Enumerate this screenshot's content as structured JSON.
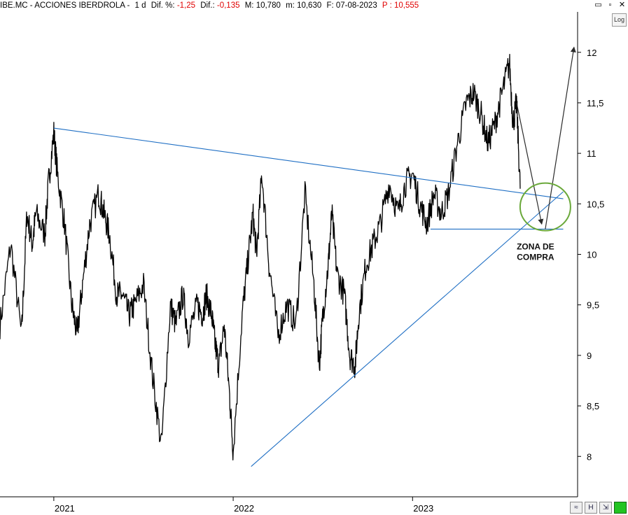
{
  "header": {
    "symbol": "IBE.MC - ACCIONES IBERDROLA -",
    "interval": "1 d",
    "dif_pct_label": "Dif. %:",
    "dif_pct": "-1,25",
    "dif_label": "Dif.:",
    "dif": "-0,135",
    "max_label": "M:",
    "max": "10,780",
    "min_label": "m:",
    "min": "10,630",
    "date_label": "F:",
    "date": "07-08-2023",
    "price_label": "P :",
    "price": "10,555"
  },
  "window_buttons": {
    "minimize": "▭",
    "restore": "▫",
    "close": "✕"
  },
  "log_button": "Log",
  "colors": {
    "price": "#000000",
    "trendline": "#1f6fc4",
    "circle": "#6aa83a",
    "negative": "#e00000",
    "arrow": "#2a2a2a",
    "axis_line": "#000000"
  },
  "toolbar": [
    "≈",
    "H",
    "⇲",
    ""
  ],
  "chart_data": {
    "type": "line",
    "title": "",
    "annotation": "ZONA DE\nCOMPRA",
    "x_ticks": [
      {
        "label": "2021",
        "t": 2021.0
      },
      {
        "label": "2022",
        "t": 2022.0
      },
      {
        "label": "2023",
        "t": 2023.0
      }
    ],
    "y_ticks": [
      "12",
      "11,5",
      "11",
      "10,5",
      "10",
      "9,5",
      "9",
      "8,5",
      "8"
    ],
    "ylim": [
      7.6,
      12.4
    ],
    "xlim": [
      2020.7,
      2023.92
    ],
    "series": [
      {
        "values_t": [
          2020.7,
          2020.76,
          2020.82,
          2020.85,
          2020.88,
          2020.9,
          2020.95,
          2020.97,
          2021.0,
          2021.02,
          2021.06,
          2021.1,
          2021.13,
          2021.16,
          2021.2,
          2021.25,
          2021.28,
          2021.31,
          2021.35,
          2021.38,
          2021.42,
          2021.45,
          2021.5,
          2021.55,
          2021.6,
          2021.65,
          2021.68,
          2021.72,
          2021.75,
          2021.8,
          2021.83,
          2021.85,
          2021.88,
          2021.9,
          2021.92,
          2021.95,
          2021.98,
          2022.0,
          2022.05,
          2022.08,
          2022.11,
          2022.13,
          2022.16,
          2022.2,
          2022.25,
          2022.3,
          2022.35,
          2022.4,
          2022.45,
          2022.48,
          2022.5,
          2022.53,
          2022.55,
          2022.58,
          2022.62,
          2022.65,
          2022.68,
          2022.7,
          2022.74,
          2022.78,
          2022.82,
          2022.87,
          2022.92,
          2022.96,
          2023.0,
          2023.04,
          2023.08,
          2023.12,
          2023.16,
          2023.2,
          2023.25,
          2023.3,
          2023.34,
          2023.38,
          2023.42,
          2023.46,
          2023.5,
          2023.54,
          2023.56,
          2023.58,
          2023.6
        ],
        "values": [
          9.3,
          10.1,
          9.2,
          10.4,
          10.1,
          10.4,
          10.2,
          10.7,
          11.2,
          10.8,
          10.3,
          9.5,
          9.2,
          9.7,
          10.3,
          10.6,
          10.4,
          10.2,
          9.6,
          9.6,
          9.4,
          9.5,
          9.7,
          8.8,
          8.1,
          9.5,
          9.3,
          9.6,
          9.2,
          9.5,
          9.4,
          9.6,
          9.4,
          9.1,
          8.9,
          9.3,
          8.6,
          8.05,
          9.4,
          9.9,
          10.4,
          10.0,
          10.8,
          9.9,
          9.2,
          9.5,
          9.3,
          10.6,
          9.7,
          8.9,
          9.4,
          9.9,
          10.4,
          9.8,
          9.6,
          9.0,
          8.9,
          9.4,
          9.9,
          10.1,
          10.3,
          10.7,
          10.4,
          10.7,
          10.8,
          10.5,
          10.3,
          10.6,
          10.4,
          10.6,
          11.1,
          11.5,
          11.6,
          11.4,
          11.1,
          11.3,
          11.6,
          11.9,
          11.3,
          11.5,
          10.65
        ]
      }
    ],
    "upper_trendline": [
      [
        2021.0,
        11.25
      ],
      [
        2023.84,
        10.55
      ]
    ],
    "lower_trendline": [
      [
        2022.1,
        7.9
      ],
      [
        2023.84,
        10.62
      ]
    ],
    "support_line": [
      [
        2023.1,
        10.25
      ],
      [
        2023.84,
        10.25
      ]
    ],
    "arrows": [
      [
        [
          2023.58,
          11.5
        ],
        [
          2023.72,
          10.3
        ]
      ],
      [
        [
          2023.74,
          10.25
        ],
        [
          2023.9,
          12.05
        ]
      ]
    ],
    "circle_center": [
      2023.74,
      10.47
    ]
  }
}
